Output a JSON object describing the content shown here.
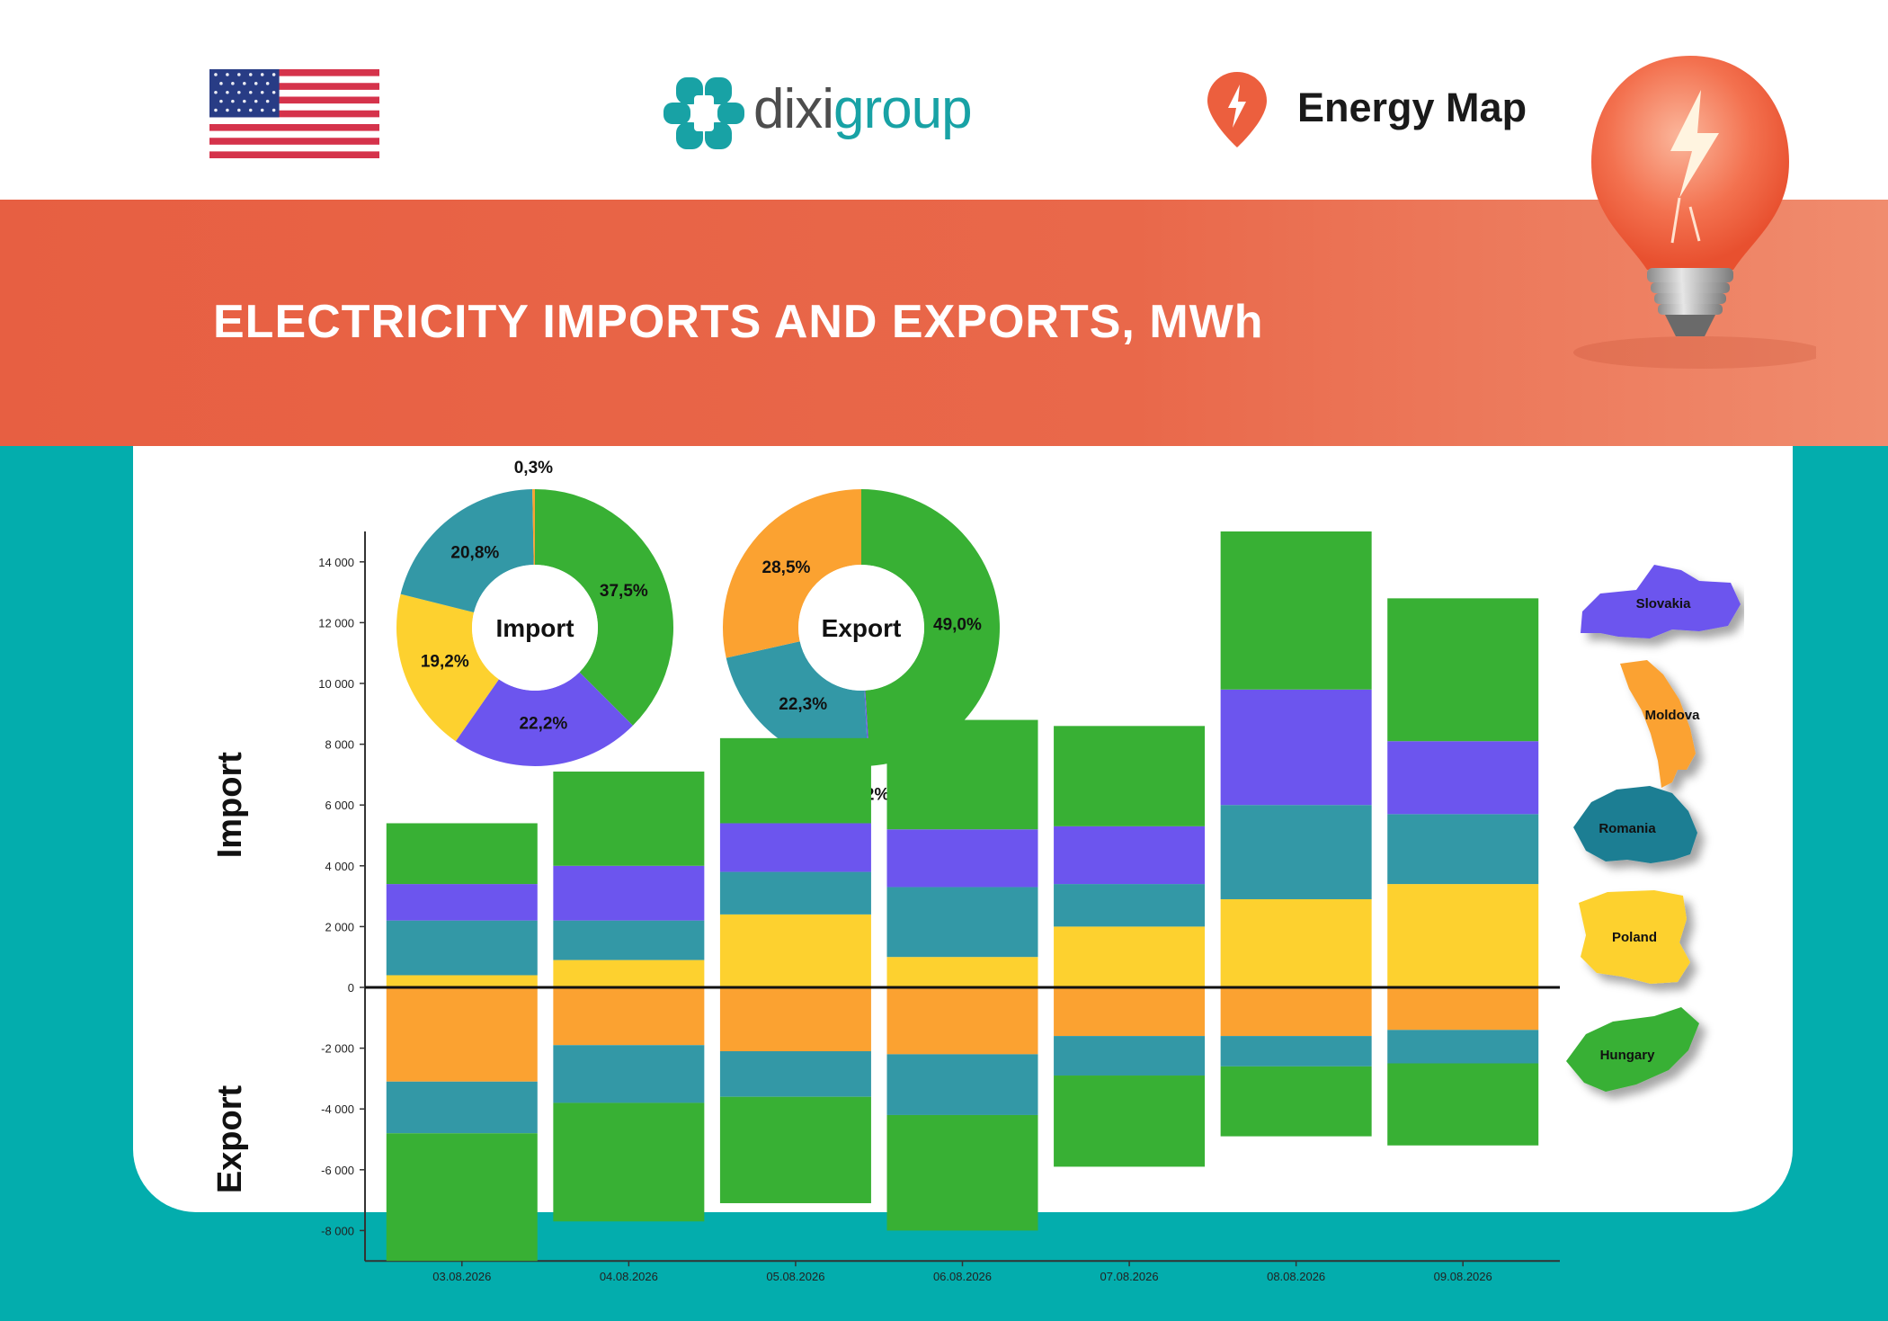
{
  "header": {
    "brand_a": "dixi",
    "brand_b": "group",
    "product": "Energy Map",
    "flag_icon": "us-flag-icon"
  },
  "banner": {
    "title": "ELECTRICITY IMPORTS AND EXPORTS, MWh"
  },
  "colors": {
    "Hungary": "#38b034",
    "Slovakia": "#6c55ee",
    "Romania": "#3398a6",
    "Poland": "#fdd12f",
    "Moldova": "#fba231",
    "teal": "#03adad",
    "banner": "#e9684a"
  },
  "countries": [
    "Slovakia",
    "Moldova",
    "Romania",
    "Poland",
    "Hungary"
  ],
  "chart_data": [
    {
      "type": "pie",
      "title": "Import",
      "slices": [
        {
          "country": "Hungary",
          "value": 37.5,
          "label": "37,5%"
        },
        {
          "country": "Slovakia",
          "value": 22.2,
          "label": "22,2%"
        },
        {
          "country": "Poland",
          "value": 19.2,
          "label": "19,2%"
        },
        {
          "country": "Romania",
          "value": 20.8,
          "label": "20,8%"
        },
        {
          "country": "Moldova",
          "value": 0.3,
          "label": "0,3%"
        }
      ]
    },
    {
      "type": "pie",
      "title": "Export",
      "slices": [
        {
          "country": "Hungary",
          "value": 49.0,
          "label": "49,0%"
        },
        {
          "country": "Slovakia",
          "value": 0.2,
          "label": "0,2%"
        },
        {
          "country": "Romania",
          "value": 22.3,
          "label": "22,3%"
        },
        {
          "country": "Moldova",
          "value": 28.5,
          "label": "28,5%"
        }
      ]
    },
    {
      "type": "bar",
      "stacked": true,
      "ylabel_top": "Import",
      "ylabel_bottom": "Export",
      "ylim": [
        -9000,
        15000
      ],
      "yticks": [
        14000,
        12000,
        10000,
        8000,
        6000,
        4000,
        2000,
        0,
        -2000,
        -4000,
        -6000,
        -8000
      ],
      "ytick_labels": [
        "14 000",
        "12 000",
        "10 000",
        "8 000",
        "6 000",
        "4 000",
        "2 000",
        "0",
        "-2 000",
        "-4 000",
        "-6 000",
        "-8 000"
      ],
      "categories": [
        "03.08.2026",
        "04.08.2026",
        "05.08.2026",
        "06.08.2026",
        "07.08.2026",
        "08.08.2026",
        "09.08.2026"
      ],
      "import_series": [
        {
          "country": "Poland",
          "values": [
            400,
            900,
            2400,
            1000,
            2000,
            2900,
            3400
          ]
        },
        {
          "country": "Romania",
          "values": [
            1800,
            1300,
            1400,
            2300,
            1400,
            3100,
            2300
          ]
        },
        {
          "country": "Slovakia",
          "values": [
            1200,
            1800,
            1600,
            1900,
            1900,
            3800,
            2400
          ]
        },
        {
          "country": "Hungary",
          "values": [
            2000,
            3100,
            2800,
            3600,
            3300,
            5200,
            4700
          ]
        }
      ],
      "export_series": [
        {
          "country": "Moldova",
          "values": [
            -3100,
            -1900,
            -2100,
            -2200,
            -1600,
            -1600,
            -1400
          ]
        },
        {
          "country": "Romania",
          "values": [
            -1700,
            -1900,
            -1500,
            -2000,
            -1300,
            -1000,
            -1100
          ]
        },
        {
          "country": "Hungary",
          "values": [
            -4200,
            -3900,
            -3500,
            -3800,
            -3000,
            -2300,
            -2700
          ]
        }
      ]
    }
  ]
}
